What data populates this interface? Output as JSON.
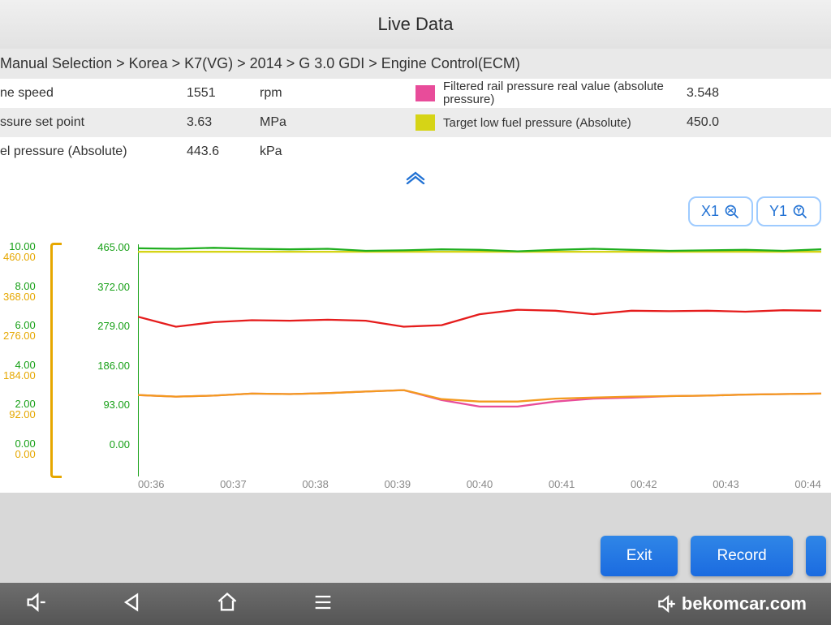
{
  "title": "Live Data",
  "breadcrumb": "Manual Selection  > Korea  > K7(VG)  > 2014  > G 3.0 GDI  > Engine Control(ECM)",
  "rows": {
    "left": [
      {
        "name": "ne speed",
        "value": "1551",
        "unit": "rpm"
      },
      {
        "name": "ssure set point",
        "value": "3.63",
        "unit": "MPa"
      },
      {
        "name": "el pressure (Absolute)",
        "value": "443.6",
        "unit": "kPa"
      }
    ],
    "right": [
      {
        "swatch": "#e84c9a",
        "name": "Filtered rail pressure real value (absolute pressure)",
        "value": "3.548"
      },
      {
        "swatch": "#d6d416",
        "name": "Target low fuel pressure (Absolute)",
        "value": "450.0"
      }
    ]
  },
  "zoom": {
    "x": "X1",
    "y": "Y1"
  },
  "chart": {
    "left_axis_pairs": [
      {
        "a": "10.00",
        "b": "460.00"
      },
      {
        "a": "8.00",
        "b": "368.00"
      },
      {
        "a": "6.00",
        "b": "276.00"
      },
      {
        "a": "4.00",
        "b": "184.00"
      },
      {
        "a": "2.00",
        "b": "92.00"
      },
      {
        "a": "0.00",
        "b": "0.00"
      }
    ],
    "mid_axis": [
      "465.00",
      "372.00",
      "279.00",
      "186.00",
      "93.00",
      "0.00"
    ],
    "xticks": [
      "00:36",
      "00:37",
      "00:38",
      "00:39",
      "00:40",
      "00:41",
      "00:42",
      "00:43",
      "00:44"
    ],
    "ylim": [
      0,
      465
    ],
    "xlim": [
      0,
      9
    ],
    "colors": {
      "green": "#1fae1f",
      "yellow": "#d6d416",
      "red": "#e51c1c",
      "orange": "#f39a1f",
      "pink": "#e84c9a",
      "axis": "#17a017"
    },
    "line_width": 2.3,
    "series": {
      "green": [
        457,
        456,
        458,
        456,
        455,
        456,
        452,
        453,
        455,
        454,
        451,
        454,
        456,
        454,
        452,
        453,
        454,
        452,
        455
      ],
      "yellow": [
        450,
        450,
        450,
        450,
        450,
        450,
        450,
        450,
        450,
        450,
        450,
        450,
        450,
        450,
        450,
        450,
        450,
        450,
        450
      ],
      "red": [
        320,
        300,
        309,
        313,
        312,
        314,
        312,
        300,
        303,
        325,
        334,
        332,
        325,
        332,
        331,
        332,
        330,
        333,
        332
      ],
      "orange": [
        163,
        160,
        162,
        166,
        165,
        167,
        170,
        173,
        155,
        150,
        150,
        156,
        158,
        160,
        161,
        162,
        164,
        165,
        166
      ],
      "pink": [
        163,
        160,
        162,
        166,
        165,
        167,
        170,
        173,
        153,
        140,
        140,
        150,
        156,
        158,
        161,
        162,
        164,
        165,
        166
      ]
    }
  },
  "buttons": {
    "exit": "Exit",
    "record": "Record"
  },
  "watermark": "bekomcar.com"
}
